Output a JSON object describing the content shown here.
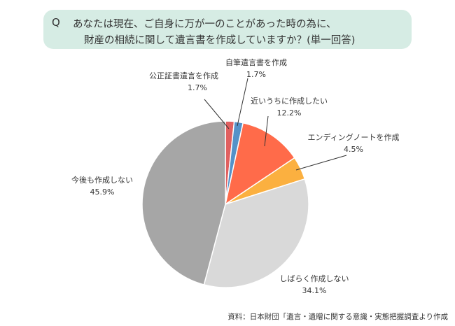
{
  "question": {
    "mark": "Q",
    "line1": "あなたは現在、ご自身に万が一のことがあった時の為に、",
    "line2": "財産の相続に関して遺言書を作成していますか？(単一回答)"
  },
  "chart_data": {
    "type": "pie",
    "start": "12 o'clock",
    "direction": "clockwise",
    "slices": [
      {
        "label": "公正証書遺言を作成",
        "value": 1.7,
        "value_label": "1.7%",
        "color": "#e06060"
      },
      {
        "label": "自筆遺言書を作成",
        "value": 1.7,
        "value_label": "1.7%",
        "color": "#5592c8"
      },
      {
        "label": "近いうちに作成したい",
        "value": 12.2,
        "value_label": "12.2%",
        "color": "#ff6b4a"
      },
      {
        "label": "エンディングノートを作成",
        "value": 4.5,
        "value_label": "4.5%",
        "color": "#fbb040"
      },
      {
        "label": "しばらく作成しない",
        "value": 34.1,
        "value_label": "34.1%",
        "color": "#d9d9d9"
      },
      {
        "label": "今後も作成しない",
        "value": 45.9,
        "value_label": "45.9%",
        "color": "#a6a6a6"
      }
    ]
  },
  "source": "資料：日本財団「遺言・遺贈に関する意識・実態把握調査より作成"
}
